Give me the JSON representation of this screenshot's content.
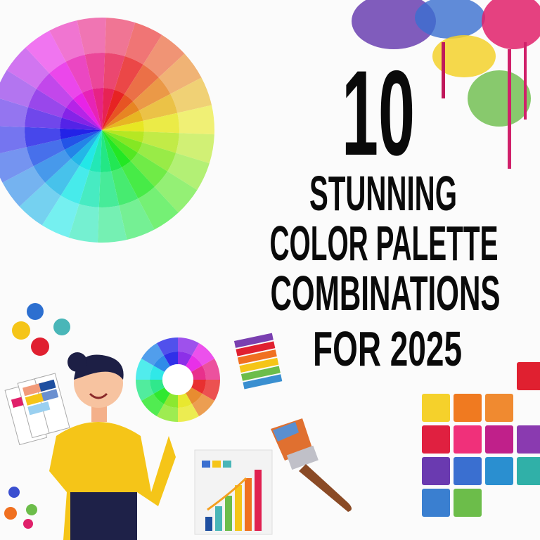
{
  "poster": {
    "number": "10",
    "line1": "STUNNING",
    "line2": "COLOR PALETTE",
    "line3": "COMBINATIONS",
    "line4": "FOR 2025"
  },
  "illustrations": {
    "color_wheel": "color-wheel-splash",
    "small_wheel": "color-wheel-icon",
    "character": "woman-holding-swatches",
    "brush": "paintbrush-icon",
    "chart": "bar-chart-card-icon",
    "grid": "color-swatch-grid"
  },
  "colors": {
    "text": "#0a0a0a",
    "background": "#fbfbfb",
    "shirt": "#f5c518",
    "pants": "#1e2148",
    "hair": "#1d1f45"
  }
}
